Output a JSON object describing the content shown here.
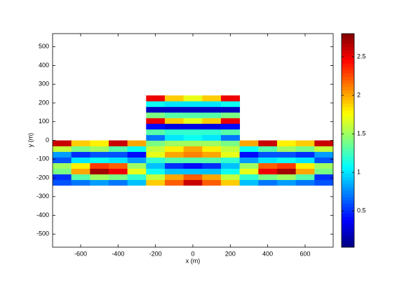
{
  "chart_data": {
    "type": "heatmap",
    "xlabel": "x (m)",
    "ylabel": "y (m)",
    "colormap": "jet",
    "x": [
      -700,
      -600,
      -500,
      -400,
      -300,
      -200,
      -100,
      0,
      100,
      200,
      300,
      400,
      500,
      600,
      700
    ],
    "y": [
      -225,
      -195,
      -165,
      -135,
      -105,
      -75,
      -45,
      -15,
      15,
      45,
      75,
      105,
      135,
      165,
      195,
      225
    ],
    "cell_size": [
      100,
      30
    ],
    "z": [
      [
        0.6,
        0.7,
        0.8,
        0.7,
        0.9,
        1.9,
        2.2,
        2.6,
        2.2,
        1.9,
        0.9,
        0.7,
        0.8,
        0.7,
        0.6
      ],
      [
        0.5,
        1.3,
        1.5,
        1.4,
        1.2,
        1.6,
        2.0,
        2.2,
        2.0,
        1.6,
        1.2,
        1.4,
        1.5,
        1.3,
        0.5
      ],
      [
        1.4,
        2.0,
        2.7,
        2.5,
        1.7,
        1.1,
        0.9,
        0.9,
        0.9,
        1.1,
        1.7,
        2.5,
        2.7,
        2.0,
        1.4
      ],
      [
        1.5,
        1.8,
        2.3,
        2.2,
        1.5,
        0.9,
        0.5,
        0.4,
        0.5,
        0.9,
        1.5,
        2.2,
        2.3,
        1.8,
        1.5
      ],
      [
        0.6,
        1.0,
        1.1,
        1.0,
        0.8,
        1.2,
        1.3,
        1.3,
        1.3,
        1.2,
        0.8,
        1.0,
        1.1,
        1.0,
        0.6
      ],
      [
        0.8,
        0.5,
        0.6,
        0.6,
        0.4,
        1.7,
        2.0,
        2.1,
        2.0,
        1.7,
        0.4,
        0.6,
        0.6,
        0.5,
        0.8
      ],
      [
        1.6,
        1.4,
        1.5,
        1.3,
        1.1,
        1.6,
        1.8,
        2.0,
        1.8,
        1.6,
        1.1,
        1.3,
        1.5,
        1.4,
        1.6
      ],
      [
        2.6,
        1.9,
        1.8,
        2.6,
        2.0,
        1.4,
        1.5,
        1.5,
        1.5,
        1.4,
        2.0,
        2.6,
        1.8,
        1.9,
        2.6
      ],
      [
        null,
        null,
        null,
        null,
        null,
        0.7,
        1.0,
        1.1,
        1.0,
        0.7,
        null,
        null,
        null,
        null,
        null
      ],
      [
        null,
        null,
        null,
        null,
        null,
        1.3,
        1.2,
        1.2,
        1.2,
        1.3,
        null,
        null,
        null,
        null,
        null
      ],
      [
        null,
        null,
        null,
        null,
        null,
        0.4,
        0.3,
        0.3,
        0.3,
        0.4,
        null,
        null,
        null,
        null,
        null
      ],
      [
        null,
        null,
        null,
        null,
        null,
        2.5,
        1.9,
        1.7,
        1.9,
        2.5,
        null,
        null,
        null,
        null,
        null
      ],
      [
        null,
        null,
        null,
        null,
        null,
        1.4,
        1.3,
        1.3,
        1.3,
        1.4,
        null,
        null,
        null,
        null,
        null
      ],
      [
        null,
        null,
        null,
        null,
        null,
        0.2,
        0.2,
        0.2,
        0.2,
        0.2,
        null,
        null,
        null,
        null,
        null
      ],
      [
        null,
        null,
        null,
        null,
        null,
        1.1,
        1.0,
        1.0,
        1.0,
        1.1,
        null,
        null,
        null,
        null,
        null
      ],
      [
        null,
        null,
        null,
        null,
        null,
        2.5,
        1.9,
        1.7,
        1.9,
        2.5,
        null,
        null,
        null,
        null,
        null
      ]
    ],
    "xlim": [
      -750,
      750
    ],
    "xticks": [
      -600,
      -400,
      -200,
      0,
      200,
      400,
      600
    ],
    "ylim": [
      -570,
      570
    ],
    "yticks": [
      -500,
      -400,
      -300,
      -200,
      -100,
      0,
      100,
      200,
      300,
      400,
      500
    ],
    "clim": [
      0.03,
      2.8
    ],
    "cticks": [
      0.5,
      1,
      1.5,
      2,
      2.5
    ]
  }
}
